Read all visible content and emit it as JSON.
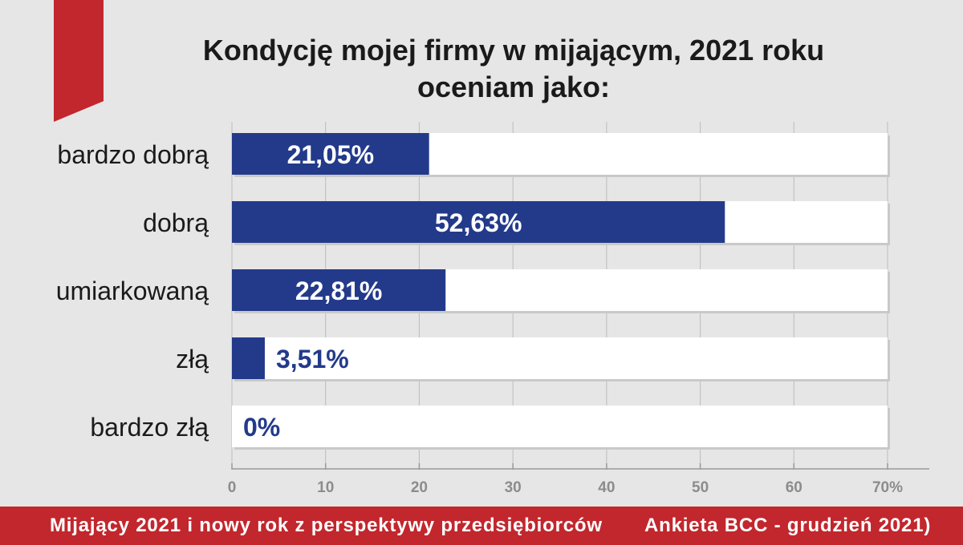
{
  "chart_data": {
    "type": "bar",
    "orientation": "horizontal",
    "title_lines": [
      "Kondycję mojej firmy w mijającym, 2021 roku",
      "oceniam jako:"
    ],
    "categories": [
      "bardzo dobrą",
      "dobrą",
      "umiarkowaną",
      "złą",
      "bardzo złą"
    ],
    "values": [
      21.05,
      52.63,
      22.81,
      3.51,
      0
    ],
    "value_labels": [
      "21,05%",
      "52,63%",
      "22,81%",
      "3,51%",
      "0%"
    ],
    "xlim": [
      0,
      70
    ],
    "x_ticks": [
      0,
      10,
      20,
      30,
      40,
      50,
      60,
      70
    ],
    "x_tick_labels": [
      "0",
      "10",
      "20",
      "30",
      "40",
      "50",
      "60",
      "70%"
    ],
    "grid": true,
    "colors": {
      "bar": "#233a8b",
      "track": "#ffffff",
      "label_inside": "#ffffff",
      "label_outside": "#233a8b",
      "accent": "#c1272d"
    }
  },
  "footer": {
    "left": "Mijający 2021 i nowy rok z perspektywy przedsiębiorców",
    "right": "Ankieta BCC - grudzień 2021)"
  }
}
